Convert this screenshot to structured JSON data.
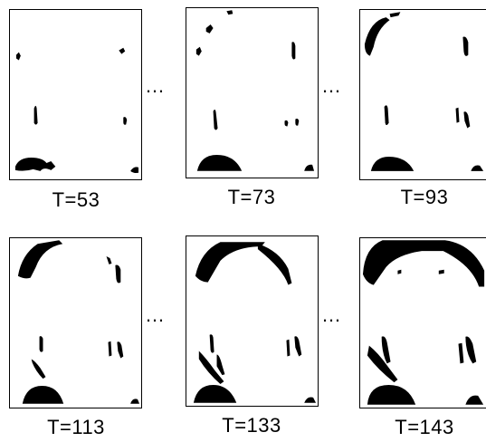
{
  "figure": {
    "panels": [
      {
        "label": "T=53"
      },
      {
        "label": "T=73"
      },
      {
        "label": "T=93"
      },
      {
        "label": "T=113"
      },
      {
        "label": "T=133"
      },
      {
        "label": "T=143"
      }
    ],
    "ellipsis": "…"
  }
}
